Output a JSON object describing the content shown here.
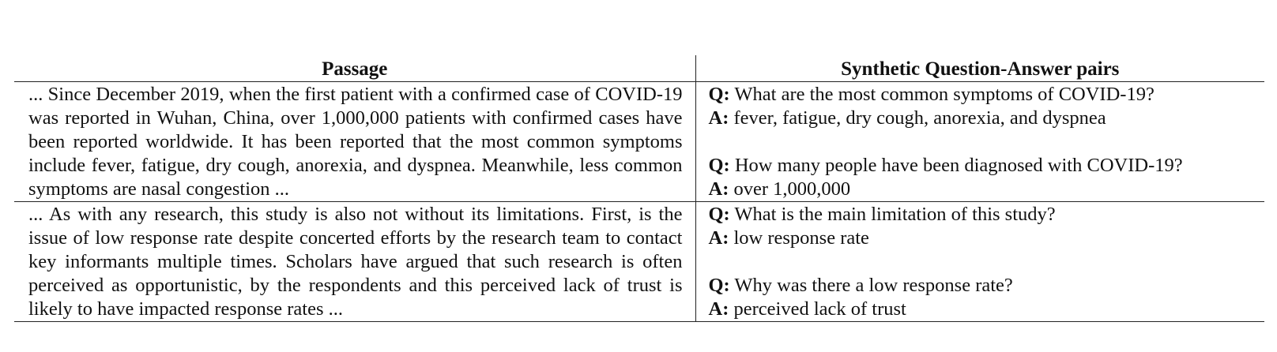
{
  "table": {
    "headers": {
      "passage": "Passage",
      "qa": "Synthetic Question-Answer pairs"
    },
    "q_prefix": "Q:",
    "a_prefix": "A:",
    "rows": [
      {
        "passage": "... Since December 2019, when the first patient with a confirmed case of COVID-19 was reported in Wuhan, China, over 1,000,000 patients with confirmed cases have been reported worldwide. It has been reported that the most common symptoms include fever, fatigue, dry cough, anorexia, and dyspnea. Meanwhile, less common symptoms are nasal congestion ...",
        "pairs": [
          {
            "q": "What are the most common symptoms of COVID-19?",
            "a": "fever, fatigue, dry cough, anorexia, and dyspnea"
          },
          {
            "q": "How many people have been diagnosed with COVID-19?",
            "a": "over 1,000,000"
          }
        ]
      },
      {
        "passage": "... As with any research, this study is also not without its limitations. First, is the issue of low response rate despite concerted efforts by the research team to contact key informants multiple times. Scholars have argued that such research is often perceived as opportunistic, by the respondents and this perceived lack of trust is likely to have impacted response rates ...",
        "pairs": [
          {
            "q": "What is the main limitation of this study?",
            "a": "low response rate"
          },
          {
            "q": "Why was there a low response rate?",
            "a": "perceived lack of trust"
          }
        ]
      }
    ]
  }
}
